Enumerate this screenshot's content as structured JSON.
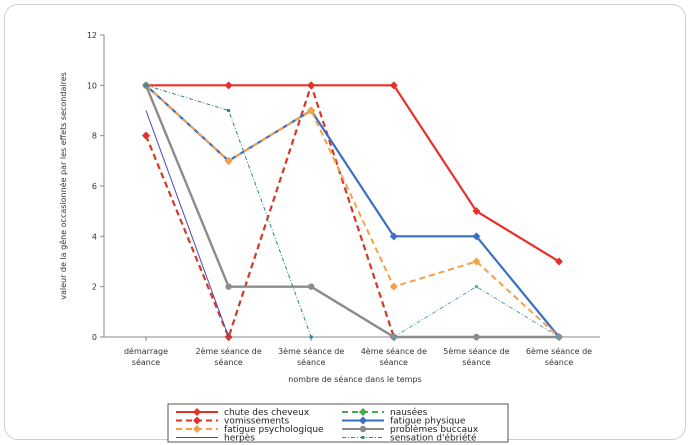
{
  "chart_data": {
    "type": "line",
    "title": "",
    "xlabel": "nombre de séance dans le temps",
    "ylabel": "valeur de la gêne occasionnée par les effets secondaires",
    "ylim": [
      0,
      12
    ],
    "yticks": [
      "0",
      "2",
      "4",
      "6",
      "8",
      "10",
      "12"
    ],
    "grid": false,
    "legend_position": "bottom",
    "categories": [
      [
        "démarrage",
        "séance"
      ],
      [
        "2ème séance de",
        "séance"
      ],
      [
        "3ème séance de",
        "séance"
      ],
      [
        "4ème séance de",
        "séance"
      ],
      [
        "5ème séance de",
        "séance"
      ],
      [
        "6ème séance de",
        "séance"
      ]
    ],
    "series": [
      {
        "name": "chute des cheveux",
        "color": "#e8302a",
        "dash": "solid",
        "marker": "diamond",
        "width": 2.2,
        "values": [
          10,
          10,
          10,
          10,
          5,
          3
        ]
      },
      {
        "name": "nausées",
        "color": "#4aa84a",
        "dash": "dashed",
        "marker": "diamond",
        "width": 2.2,
        "values": [
          8,
          0,
          10,
          0,
          null,
          null
        ]
      },
      {
        "name": "vomissements",
        "color": "#e8302a",
        "dash": "dashed",
        "marker": "diamond",
        "width": 2.0,
        "values": [
          8,
          0,
          10,
          0,
          null,
          null
        ]
      },
      {
        "name": "fatigue physique",
        "color": "#3b6fc4",
        "dash": "solid",
        "marker": "diamond",
        "width": 2.2,
        "values": [
          10,
          7,
          9,
          4,
          4,
          0
        ]
      },
      {
        "name": "fatigue psychologique",
        "color": "#f5a04a",
        "dash": "dashed",
        "marker": "diamond",
        "width": 2.0,
        "values": [
          10,
          7,
          9,
          2,
          3,
          0
        ]
      },
      {
        "name": "problèmes buccaux",
        "color": "#8c8c8c",
        "dash": "solid",
        "marker": "circle",
        "width": 2.4,
        "values": [
          10,
          2,
          2,
          0,
          0,
          0
        ]
      },
      {
        "name": "herpès",
        "color": "#4a4ab0",
        "dash": "solid",
        "marker": "none",
        "width": 1.0,
        "values": [
          9,
          0,
          null,
          null,
          null,
          null
        ]
      },
      {
        "name": "sensation d'ébriété",
        "color": "#2a8a8a",
        "dash": "dashdot",
        "marker": "small",
        "width": 1.0,
        "values": [
          10,
          9,
          0,
          null,
          null,
          null
        ]
      },
      {
        "name": "",
        "color": "#5aa0b8",
        "dash": "dashdot",
        "marker": "small",
        "width": 1.0,
        "values": [
          null,
          null,
          null,
          0,
          2,
          0
        ]
      }
    ]
  }
}
